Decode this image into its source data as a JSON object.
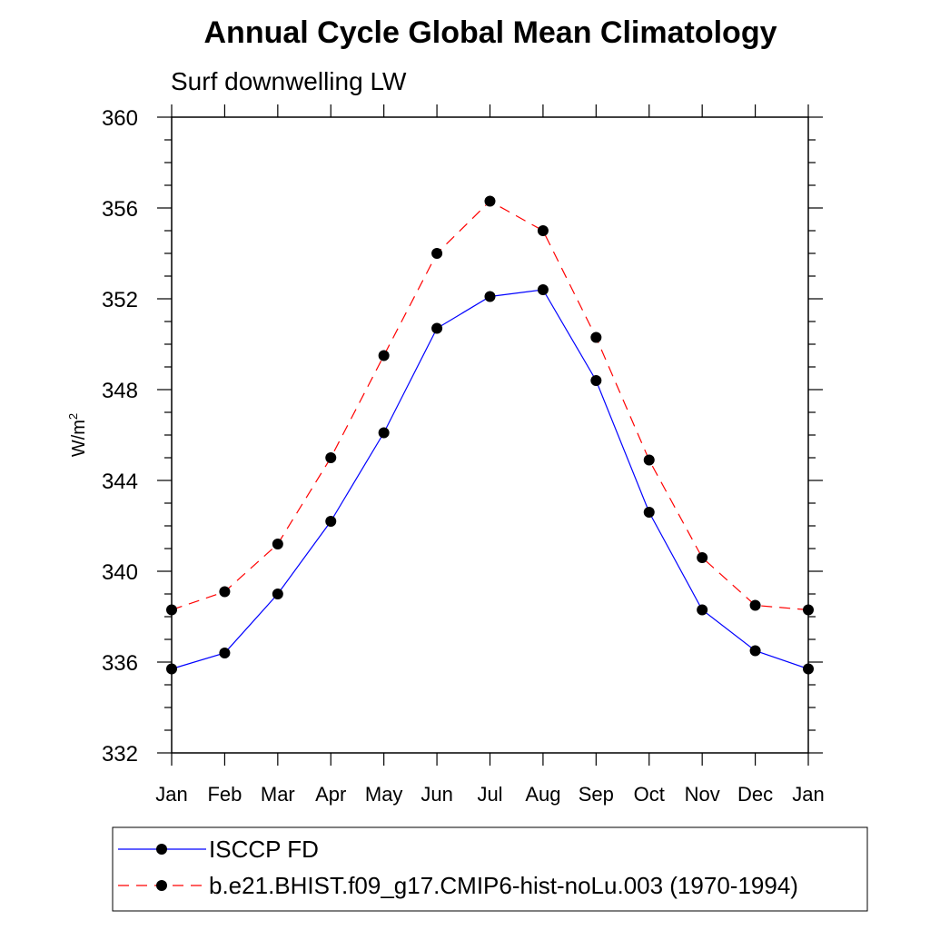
{
  "chart_data": {
    "type": "line",
    "title": "Annual Cycle Global Mean Climatology",
    "subtitle": "Surf downwelling LW",
    "ylabel": "W/m",
    "ylabel_superscript": "2",
    "xlabel": "",
    "categories": [
      "Jan",
      "Feb",
      "Mar",
      "Apr",
      "May",
      "Jun",
      "Jul",
      "Aug",
      "Sep",
      "Oct",
      "Nov",
      "Dec",
      "Jan"
    ],
    "ylim": [
      332,
      360
    ],
    "yticks": [
      "332",
      "336",
      "340",
      "344",
      "348",
      "352",
      "356",
      "360"
    ],
    "grid": false,
    "legend_position": "bottom",
    "series": [
      {
        "name": "ISCCP FD",
        "color": "#0000ff",
        "line_style": "solid",
        "marker": "filled-circle",
        "values": [
          335.7,
          336.4,
          339.0,
          342.2,
          346.1,
          350.7,
          352.1,
          352.4,
          348.4,
          342.6,
          338.3,
          336.5,
          335.7
        ]
      },
      {
        "name": "b.e21.BHIST.f09_g17.CMIP6-hist-noLu.003 (1970-1994)",
        "color": "#ff0000",
        "line_style": "dashed",
        "marker": "filled-circle",
        "values": [
          338.3,
          339.1,
          341.2,
          345.0,
          349.5,
          354.0,
          356.3,
          355.0,
          350.3,
          344.9,
          340.6,
          338.5,
          338.3
        ]
      }
    ]
  }
}
